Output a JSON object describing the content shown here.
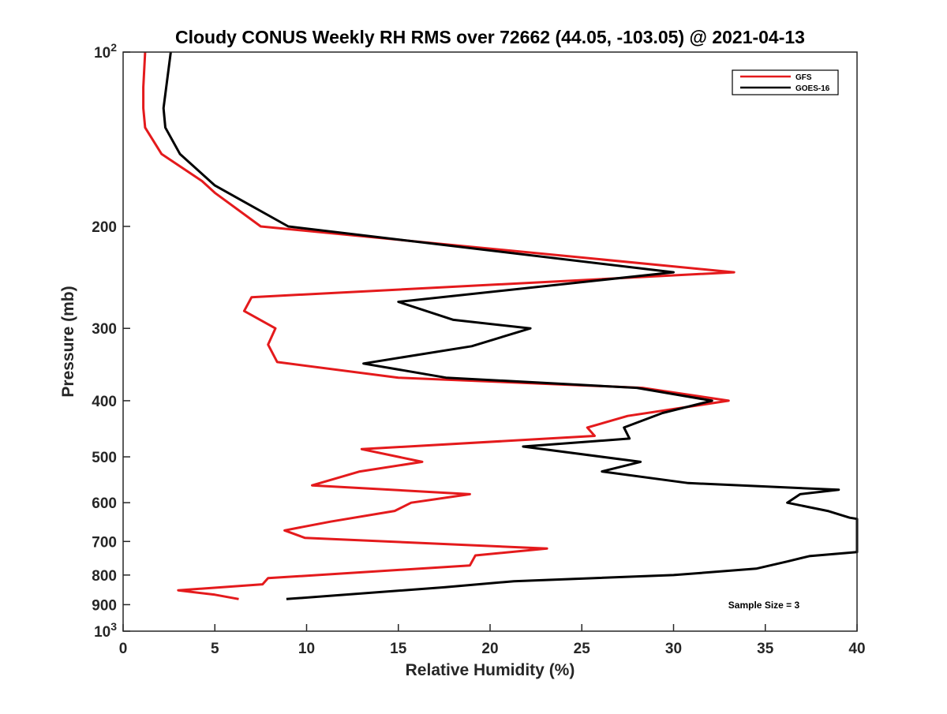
{
  "chart_data": {
    "type": "line",
    "title": "Cloudy CONUS Weekly RH RMS over 72662 (44.05, -103.05) @ 2021-04-13",
    "xlabel": "Relative Humidity (%)",
    "ylabel": "Pressure (mb)",
    "xlim": [
      0,
      40
    ],
    "ylim": [
      100,
      1000
    ],
    "yscale": "log",
    "y_reversed": true,
    "grid": false,
    "legend_position": "top-right",
    "x_ticks": [
      0,
      5,
      10,
      15,
      20,
      25,
      30,
      35,
      40
    ],
    "x_tick_labels": [
      "0",
      "5",
      "10",
      "15",
      "20",
      "25",
      "30",
      "35",
      "40"
    ],
    "y_ticks": [
      100,
      200,
      300,
      400,
      500,
      600,
      700,
      800,
      900,
      1000
    ],
    "y_tick_labels": [
      {
        "base": "10",
        "exp": "2"
      },
      {
        "base": "200",
        "exp": ""
      },
      {
        "base": "300",
        "exp": ""
      },
      {
        "base": "400",
        "exp": ""
      },
      {
        "base": "500",
        "exp": ""
      },
      {
        "base": "600",
        "exp": ""
      },
      {
        "base": "700",
        "exp": ""
      },
      {
        "base": "800",
        "exp": ""
      },
      {
        "base": "900",
        "exp": ""
      },
      {
        "base": "10",
        "exp": "3"
      }
    ],
    "annotation": "Sample Size = 3",
    "series": [
      {
        "name": "GFS",
        "color": "#e41a1c",
        "points": [
          [
            1.2,
            100
          ],
          [
            1.1,
            115
          ],
          [
            1.1,
            125
          ],
          [
            1.2,
            135
          ],
          [
            2.1,
            150
          ],
          [
            4.3,
            167
          ],
          [
            5.0,
            175
          ],
          [
            7.5,
            200
          ],
          [
            33.3,
            240
          ],
          [
            7.0,
            265
          ],
          [
            6.6,
            280
          ],
          [
            8.3,
            300
          ],
          [
            7.9,
            320
          ],
          [
            8.4,
            343
          ],
          [
            15.0,
            365
          ],
          [
            28.3,
            380
          ],
          [
            33.0,
            400
          ],
          [
            27.5,
            425
          ],
          [
            25.3,
            445
          ],
          [
            25.7,
            460
          ],
          [
            13.0,
            485
          ],
          [
            16.3,
            510
          ],
          [
            12.9,
            530
          ],
          [
            10.3,
            560
          ],
          [
            18.9,
            580
          ],
          [
            15.7,
            600
          ],
          [
            14.8,
            620
          ],
          [
            11.3,
            647
          ],
          [
            8.8,
            670
          ],
          [
            9.9,
            690
          ],
          [
            23.1,
            720
          ],
          [
            19.2,
            740
          ],
          [
            18.9,
            770
          ],
          [
            7.9,
            810
          ],
          [
            7.6,
            830
          ],
          [
            3.0,
            850
          ],
          [
            5.0,
            865
          ],
          [
            6.3,
            880
          ]
        ]
      },
      {
        "name": "GOES-16",
        "color": "#000000",
        "points": [
          [
            2.6,
            100
          ],
          [
            2.2,
            125
          ],
          [
            2.3,
            135
          ],
          [
            3.1,
            150
          ],
          [
            5.0,
            170
          ],
          [
            9.0,
            200
          ],
          [
            30.0,
            240
          ],
          [
            15.0,
            270
          ],
          [
            18.0,
            290
          ],
          [
            22.2,
            300
          ],
          [
            19.0,
            322
          ],
          [
            13.1,
            345
          ],
          [
            17.6,
            365
          ],
          [
            28.0,
            380
          ],
          [
            32.1,
            400
          ],
          [
            29.4,
            420
          ],
          [
            27.3,
            445
          ],
          [
            27.6,
            465
          ],
          [
            21.8,
            480
          ],
          [
            28.2,
            510
          ],
          [
            26.1,
            530
          ],
          [
            30.8,
            555
          ],
          [
            39.0,
            570
          ],
          [
            36.9,
            580
          ],
          [
            36.2,
            600
          ],
          [
            38.4,
            620
          ],
          [
            39.6,
            637
          ],
          [
            40.0,
            640
          ],
          [
            40.0,
            730
          ],
          [
            37.4,
            742
          ],
          [
            36.2,
            758
          ],
          [
            34.5,
            780
          ],
          [
            30.0,
            800
          ],
          [
            21.3,
            820
          ],
          [
            17.5,
            840
          ],
          [
            8.9,
            880
          ]
        ]
      }
    ]
  }
}
